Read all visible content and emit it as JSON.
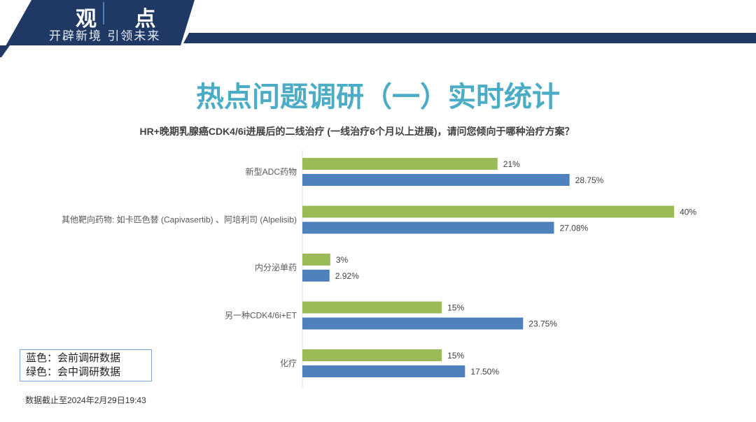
{
  "header": {
    "banner_title": "观 点",
    "banner_subtitle": "开辟新境 引领未来",
    "banner_color": "#1f3864"
  },
  "page_title": "热点问题调研（一）实时统计",
  "legend": {
    "blue": "蓝色：会前调研数据",
    "green": "绿色：会中调研数据"
  },
  "footnote": "数据截止至2024年2月29日19:43",
  "chart_data": {
    "type": "bar",
    "orientation": "horizontal",
    "title": "HR+晚期乳腺癌CDK4/6i进展后的二线治疗 (一线治疗6个月以上进展)，请问您倾向于哪种治疗方案？",
    "categories": [
      "新型ADC药物",
      "其他靶向药物: 如卡匹色替 (Capivasertib) 、阿培利司 (Alpelisib)",
      "内分泌单药",
      "另一种CDK4/6i+ET",
      "化疗"
    ],
    "series": [
      {
        "color": "#9bbb59",
        "values": [
          21,
          40,
          3,
          15,
          15
        ],
        "labels": [
          "21%",
          "40%",
          "3%",
          "15%",
          "15%"
        ]
      },
      {
        "color": "#4f81bd",
        "values": [
          28.75,
          27.08,
          2.92,
          23.75,
          17.5
        ],
        "labels": [
          "28.75%",
          "27.08%",
          "2.92%",
          "23.75%",
          "17.50%"
        ]
      }
    ],
    "xlim": [
      0,
      40
    ],
    "grid": false
  }
}
